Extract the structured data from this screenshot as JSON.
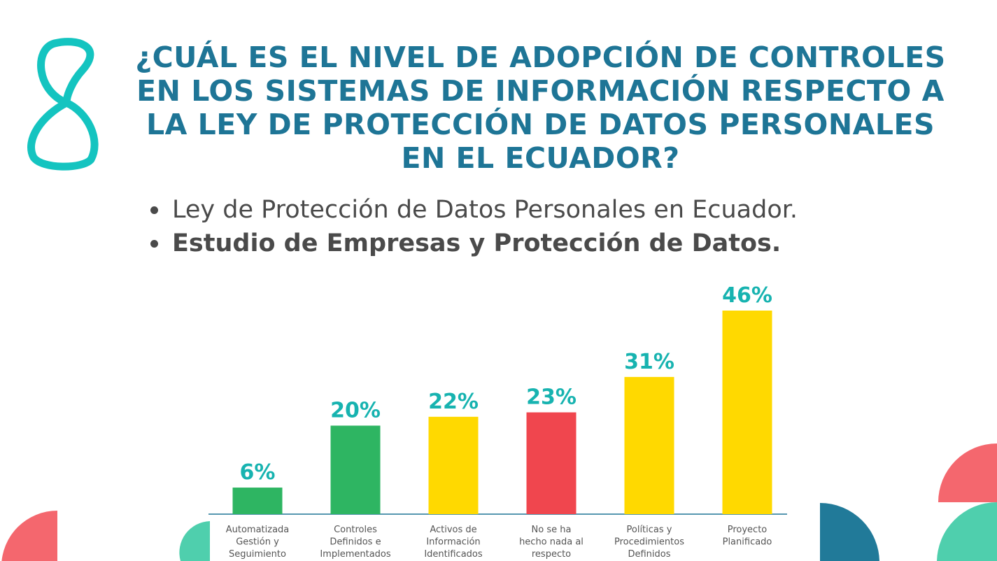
{
  "slide": {
    "number": "8"
  },
  "title": "¿CUÁL ES EL NIVEL DE ADOPCIÓN DE CONTROLES EN LOS SISTEMAS DE INFORMACIÓN RESPECTO A LA LEY DE PROTECCIÓN DE DATOS PERSONALES EN EL ECUADOR?",
  "bullets": [
    "Ley de Protección de Datos Personales en Ecuador.",
    "Estudio de Empresas y Protección de Datos."
  ],
  "colors": {
    "title": "#1e7596",
    "number": "#14c4c0",
    "label": "#17b3b0",
    "green": "#2eb562",
    "yellow": "#ffd900",
    "red": "#f0464e",
    "coral": "#f4676e",
    "teal_light": "#4fcfad",
    "teal_dark": "#217a99"
  },
  "chart_data": {
    "type": "bar",
    "title": "",
    "xlabel": "",
    "ylabel": "",
    "ylim": [
      0,
      50
    ],
    "grid": false,
    "categories": [
      [
        "Automatizada",
        "Gestión y",
        "Seguimiento"
      ],
      [
        "Controles",
        "Definidos e",
        "Implementados"
      ],
      [
        "Activos de",
        "Información",
        "Identificados"
      ],
      [
        "No se ha",
        "hecho nada al",
        "respecto"
      ],
      [
        "Políticas y",
        "Procedimientos",
        "Definidos"
      ],
      [
        "Proyecto",
        "Planificado"
      ]
    ],
    "values": [
      6,
      20,
      22,
      23,
      31,
      46
    ],
    "value_labels": [
      "6%",
      "20%",
      "22%",
      "23%",
      "31%",
      "46%"
    ],
    "bar_colors": [
      "#2eb562",
      "#2eb562",
      "#ffd900",
      "#f0464e",
      "#ffd900",
      "#ffd900"
    ]
  }
}
